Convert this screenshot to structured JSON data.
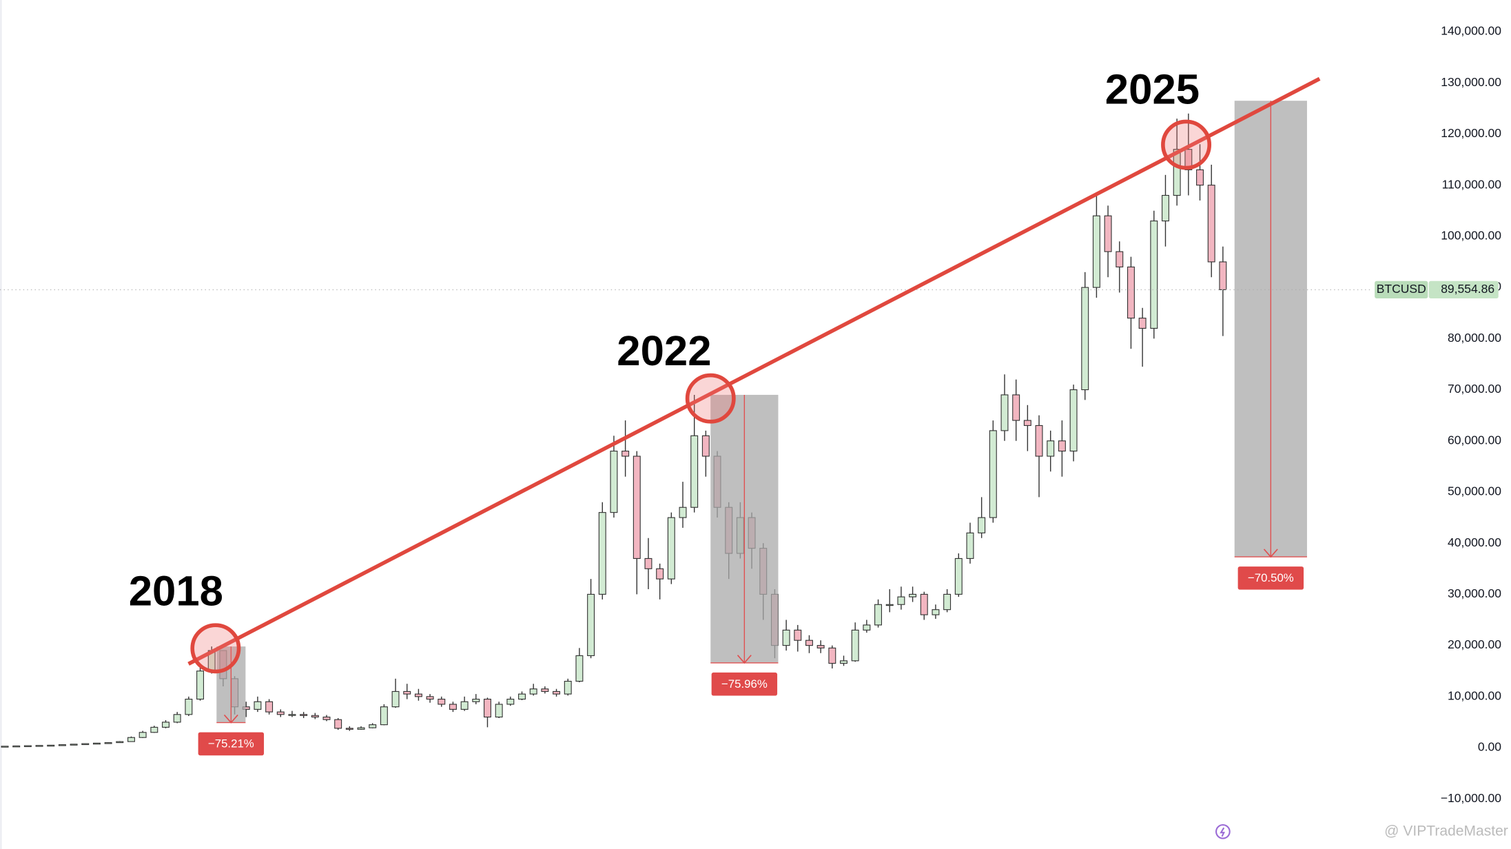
{
  "chart_data": {
    "type": "candlestick",
    "symbol": "BTCUSD",
    "price_label": {
      "value": 89554.86,
      "label": "89,554.86"
    },
    "candles": {
      "open": [
        280,
        300,
        350,
        400,
        450,
        500,
        600,
        700,
        800,
        900,
        1000,
        1200,
        2000,
        3000,
        4000,
        5000,
        6500,
        9500,
        15000,
        19000,
        13500,
        8000,
        7500,
        9000,
        7000,
        6500,
        6500,
        6300,
        6000,
        5500,
        3800,
        3600,
        3900,
        4500,
        8000,
        11000,
        10500,
        10000,
        9500,
        8500,
        7500,
        9000,
        9500,
        6000,
        8500,
        9500,
        10500,
        11500,
        11000,
        10500,
        13000,
        18000,
        30000,
        46000,
        58000,
        57000,
        37000,
        35000,
        33000,
        45000,
        47000,
        61000,
        57000,
        47000,
        38000,
        45000,
        39000,
        30000,
        20000,
        23000,
        21000,
        20000,
        19500,
        16500,
        17000,
        23000,
        24000,
        28000,
        28000,
        29500,
        30000,
        26000,
        27000,
        30000,
        37000,
        42000,
        45000,
        62000,
        69000,
        64000,
        63000,
        57000,
        60000,
        58000,
        70000,
        90000,
        104000,
        97000,
        94000,
        84000,
        82000,
        103000,
        108000,
        117000,
        113000,
        110000,
        95000
      ],
      "high": [
        320,
        370,
        420,
        470,
        530,
        630,
        730,
        830,
        930,
        1050,
        1300,
        2200,
        3300,
        4300,
        5400,
        7000,
        10000,
        16000,
        19800,
        19000,
        14000,
        9000,
        10000,
        9500,
        7500,
        7200,
        7000,
        6800,
        6400,
        5800,
        4200,
        4200,
        4800,
        8500,
        13500,
        12500,
        11500,
        10500,
        10000,
        9000,
        10000,
        10500,
        9800,
        9000,
        10000,
        11000,
        12500,
        12000,
        11500,
        13500,
        19500,
        33000,
        48000,
        61000,
        64000,
        58000,
        41000,
        36000,
        46000,
        52000,
        69000,
        62000,
        58000,
        48000,
        48000,
        46000,
        40000,
        31000,
        25000,
        24000,
        22000,
        21000,
        20000,
        18000,
        24500,
        25000,
        29000,
        31000,
        31500,
        31500,
        30500,
        28000,
        31000,
        38000,
        44000,
        49000,
        64000,
        73000,
        72000,
        67000,
        65000,
        62000,
        64000,
        71000,
        93000,
        108000,
        106000,
        99000,
        96000,
        86000,
        105000,
        112000,
        123000,
        124000,
        118000,
        114000,
        98000
      ],
      "low": [
        270,
        290,
        340,
        390,
        440,
        490,
        590,
        690,
        790,
        890,
        980,
        1150,
        1900,
        2900,
        3800,
        4800,
        6200,
        9200,
        14500,
        12000,
        6500,
        6000,
        7000,
        6500,
        6000,
        6000,
        5800,
        5600,
        5200,
        3500,
        3300,
        3500,
        3800,
        4400,
        7800,
        9500,
        9200,
        8800,
        8000,
        7000,
        7200,
        8500,
        4000,
        5800,
        8200,
        9300,
        10200,
        10600,
        10000,
        10200,
        12800,
        17500,
        29000,
        45000,
        53000,
        30000,
        31000,
        29000,
        32000,
        43000,
        46000,
        53000,
        45000,
        33000,
        37000,
        35000,
        25000,
        17500,
        19000,
        18800,
        18500,
        18500,
        15500,
        16000,
        16800,
        22500,
        23500,
        26500,
        27000,
        28500,
        25000,
        25200,
        26500,
        29500,
        36000,
        41000,
        44000,
        60000,
        60000,
        58000,
        49000,
        54000,
        53000,
        56000,
        68000,
        88000,
        92000,
        89000,
        78000,
        74500,
        80000,
        98000,
        106000,
        108000,
        107000,
        92000,
        80500
      ],
      "close": [
        300,
        350,
        400,
        450,
        500,
        600,
        700,
        800,
        900,
        1000,
        1200,
        2000,
        3000,
        4000,
        5000,
        6500,
        9500,
        15000,
        19000,
        13500,
        8000,
        7500,
        9000,
        7000,
        6500,
        6500,
        6300,
        6000,
        5500,
        3800,
        3600,
        3900,
        4500,
        8000,
        11000,
        10500,
        10000,
        9500,
        8500,
        7500,
        9000,
        9500,
        6000,
        8500,
        9500,
        10500,
        11500,
        11000,
        10500,
        13000,
        18000,
        30000,
        46000,
        58000,
        57000,
        37000,
        35000,
        33000,
        45000,
        47000,
        61000,
        57000,
        47000,
        38000,
        45000,
        39000,
        30000,
        20000,
        23000,
        21000,
        20000,
        19500,
        16500,
        17000,
        23000,
        24000,
        28000,
        28000,
        29500,
        30000,
        26000,
        27000,
        30000,
        37000,
        42000,
        45000,
        62000,
        69000,
        64000,
        63000,
        57000,
        60000,
        58000,
        70000,
        90000,
        104000,
        97000,
        94000,
        84000,
        82000,
        103000,
        108000,
        117000,
        113000,
        110000,
        95000,
        89554.86
      ]
    },
    "ylim": [
      -19800,
      146200
    ],
    "yticks": [
      {
        "value": -10000,
        "label": "−10,000.00"
      },
      {
        "value": 0,
        "label": "0.00"
      },
      {
        "value": 10000,
        "label": "10,000.00"
      },
      {
        "value": 20000,
        "label": "20,000.00"
      },
      {
        "value": 30000,
        "label": "30,000.00"
      },
      {
        "value": 40000,
        "label": "40,000.00"
      },
      {
        "value": 50000,
        "label": "50,000.00"
      },
      {
        "value": 60000,
        "label": "60,000.00"
      },
      {
        "value": 70000,
        "label": "70,000.00"
      },
      {
        "value": 80000,
        "label": "80,000.00"
      },
      {
        "value": 90000,
        "label": "90,000.00"
      },
      {
        "value": 100000,
        "label": "100,000.00"
      },
      {
        "value": 110000,
        "label": "110,000.00"
      },
      {
        "value": 120000,
        "label": "120,000.00"
      },
      {
        "value": 130000,
        "label": "130,000.00"
      },
      {
        "value": 140000,
        "label": "140,000.00"
      }
    ],
    "trendline": {
      "from": 16400,
      "to": 130800
    },
    "cycles": [
      {
        "year": "2018",
        "top": 19800,
        "bottom": 4910,
        "label": "−75.21%"
      },
      {
        "year": "2022",
        "top": 69000,
        "bottom": 16590,
        "label": "−75.96%"
      },
      {
        "year": "2025",
        "top": 126500,
        "bottom": 37320,
        "label": "−70.50%"
      }
    ],
    "watermark": "@ VIPTradeMaster"
  }
}
